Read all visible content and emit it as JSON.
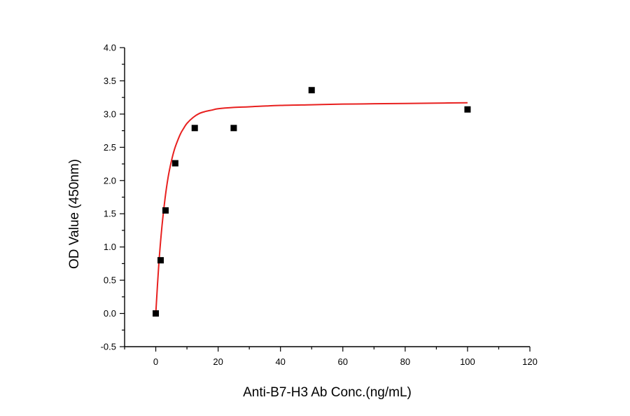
{
  "chart_data": {
    "type": "scatter",
    "title": "",
    "xlabel": "Anti-B7-H3 Ab Conc.(ng/mL)",
    "ylabel": "OD Value (450nm)",
    "xlim": [
      -10,
      120
    ],
    "ylim": [
      -0.5,
      4.0
    ],
    "x_ticks": [
      0,
      20,
      40,
      60,
      80,
      100,
      120
    ],
    "x_tick_labels": [
      "0",
      "20",
      "40",
      "60",
      "80",
      "100",
      "120"
    ],
    "y_ticks": [
      -0.5,
      0.0,
      0.5,
      1.0,
      1.5,
      2.0,
      2.5,
      3.0,
      3.5,
      4.0
    ],
    "y_tick_labels": [
      "-0.5",
      "0.0",
      "0.5",
      "1.0",
      "1.5",
      "2.0",
      "2.5",
      "3.0",
      "3.5",
      "4.0"
    ],
    "grid": false,
    "series": [
      {
        "type": "scatter",
        "marker": "square",
        "color": "#000000",
        "x": [
          0,
          1.56,
          3.13,
          6.25,
          12.5,
          25,
          50,
          100
        ],
        "y": [
          0.0,
          0.8,
          1.55,
          2.26,
          2.79,
          2.79,
          3.36,
          3.07
        ]
      },
      {
        "type": "line",
        "color": "#e8201f",
        "fit": "hyperbolic",
        "x": [
          0,
          1,
          2,
          3,
          4,
          5,
          6,
          7,
          8,
          9,
          10,
          12,
          14,
          16,
          18,
          20,
          25,
          30,
          40,
          50,
          60,
          70,
          80,
          90,
          100
        ],
        "y": [
          0.0,
          0.76,
          1.32,
          1.74,
          2.06,
          2.29,
          2.47,
          2.6,
          2.71,
          2.79,
          2.86,
          2.95,
          3.01,
          3.04,
          3.06,
          3.08,
          3.1,
          3.11,
          3.13,
          3.14,
          3.15,
          3.155,
          3.16,
          3.165,
          3.17
        ]
      }
    ]
  }
}
